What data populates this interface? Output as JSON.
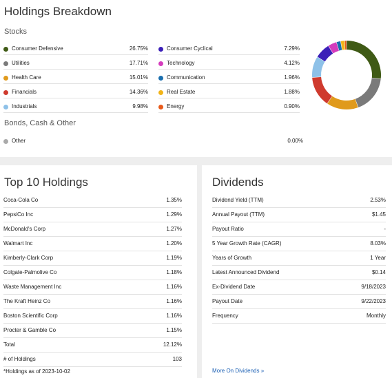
{
  "breakdown": {
    "title": "Holdings Breakdown",
    "stocks_label": "Stocks",
    "bonds_label": "Bonds, Cash & Other",
    "sectors_left": [
      {
        "name": "Consumer Defensive",
        "pct": "26.75%",
        "color": "#3f5a15"
      },
      {
        "name": "Utilities",
        "pct": "17.71%",
        "color": "#7a7a7a"
      },
      {
        "name": "Health Care",
        "pct": "15.01%",
        "color": "#e09a1c"
      },
      {
        "name": "Financials",
        "pct": "14.36%",
        "color": "#cf3a2e"
      },
      {
        "name": "Industrials",
        "pct": "9.98%",
        "color": "#8ec1e8"
      }
    ],
    "sectors_right": [
      {
        "name": "Consumer Cyclical",
        "pct": "7.29%",
        "color": "#3b1fb8"
      },
      {
        "name": "Technology",
        "pct": "4.12%",
        "color": "#d43cbd"
      },
      {
        "name": "Communication",
        "pct": "1.96%",
        "color": "#1a6fae"
      },
      {
        "name": "Real Estate",
        "pct": "1.88%",
        "color": "#f2b418"
      },
      {
        "name": "Energy",
        "pct": "0.90%",
        "color": "#e85a1a"
      }
    ],
    "other": {
      "name": "Other",
      "pct": "0.00%",
      "color": "#aaaaaa"
    }
  },
  "chart_data": {
    "type": "pie",
    "donut": true,
    "categories": [
      "Consumer Defensive",
      "Utilities",
      "Health Care",
      "Financials",
      "Industrials",
      "Consumer Cyclical",
      "Technology",
      "Communication",
      "Real Estate",
      "Energy",
      "Other"
    ],
    "values": [
      26.75,
      17.71,
      15.01,
      14.36,
      9.98,
      7.29,
      4.12,
      1.96,
      1.88,
      0.9,
      0.0
    ],
    "colors": [
      "#3f5a15",
      "#7a7a7a",
      "#e09a1c",
      "#cf3a2e",
      "#8ec1e8",
      "#3b1fb8",
      "#d43cbd",
      "#1a6fae",
      "#f2b418",
      "#e85a1a",
      "#aaaaaa"
    ]
  },
  "top10": {
    "title": "Top 10 Holdings",
    "rows": [
      {
        "label": "Coca-Cola Co",
        "value": "1.35%"
      },
      {
        "label": "PepsiCo Inc",
        "value": "1.29%"
      },
      {
        "label": "McDonald's Corp",
        "value": "1.27%"
      },
      {
        "label": "Walmart Inc",
        "value": "1.20%"
      },
      {
        "label": "Kimberly-Clark Corp",
        "value": "1.19%"
      },
      {
        "label": "Colgate-Palmolive Co",
        "value": "1.18%"
      },
      {
        "label": "Waste Management Inc",
        "value": "1.16%"
      },
      {
        "label": "The Kraft Heinz Co",
        "value": "1.16%"
      },
      {
        "label": "Boston Scientific Corp",
        "value": "1.16%"
      },
      {
        "label": "Procter & Gamble Co",
        "value": "1.15%"
      },
      {
        "label": "Total",
        "value": "12.12%"
      },
      {
        "label": "# of Holdings",
        "value": "103"
      }
    ],
    "footnote": "*Holdings as of 2023-10-02"
  },
  "dividends": {
    "title": "Dividends",
    "rows": [
      {
        "label": "Dividend Yield (TTM)",
        "value": "2.53%"
      },
      {
        "label": "Annual Payout (TTM)",
        "value": "$1.45"
      },
      {
        "label": "Payout Ratio",
        "value": "-"
      },
      {
        "label": "5 Year Growth Rate (CAGR)",
        "value": "8.03%"
      },
      {
        "label": "Years of Growth",
        "value": "1 Year"
      },
      {
        "label": "Latest Announced Dividend",
        "value": "$0.14"
      },
      {
        "label": "Ex-Dividend Date",
        "value": "9/18/2023"
      },
      {
        "label": "Payout Date",
        "value": "9/22/2023"
      },
      {
        "label": "Frequency",
        "value": "Monthly"
      }
    ],
    "more_link": "More On Dividends »"
  }
}
